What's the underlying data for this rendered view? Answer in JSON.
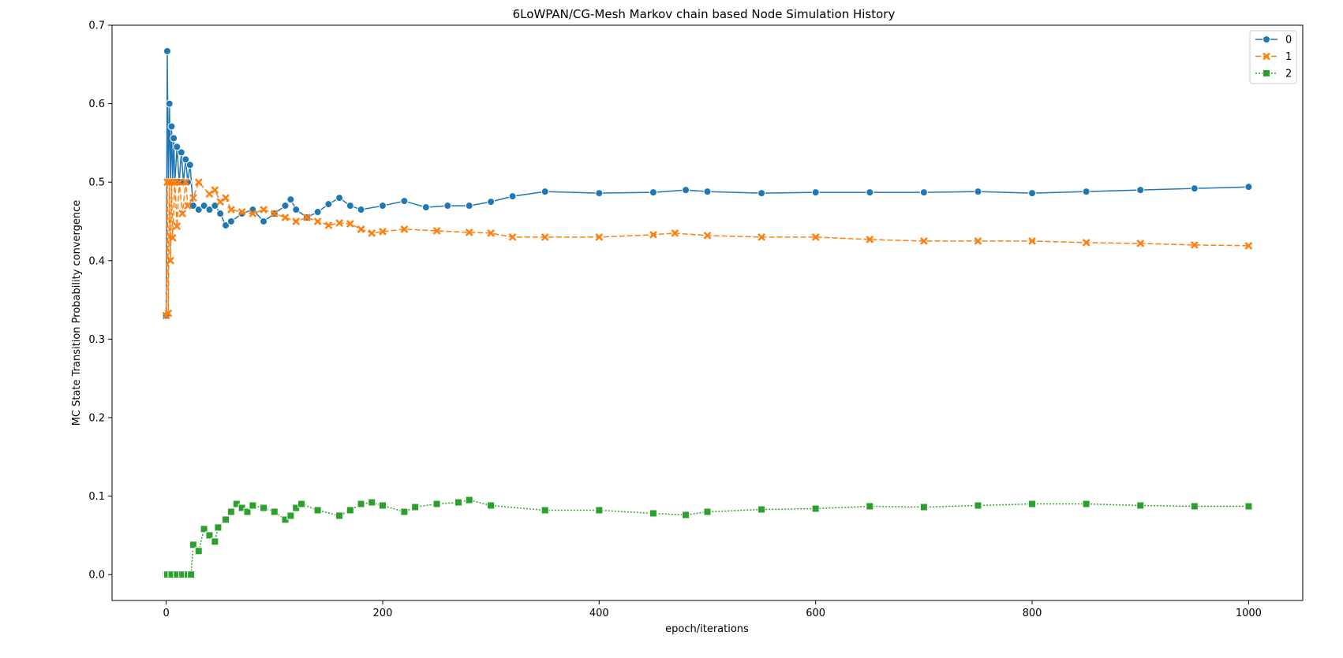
{
  "chart_data": {
    "type": "line",
    "title": "6LoWPAN/CG-Mesh Markov chain based Node Simulation History",
    "xlabel": "epoch/iterations",
    "ylabel": "MC State Transition Probability convergence",
    "xlim": [
      -50,
      1050
    ],
    "ylim": [
      -0.033,
      0.7
    ],
    "xticks": [
      0,
      200,
      400,
      600,
      800,
      1000
    ],
    "yticks": [
      0.0,
      0.1,
      0.2,
      0.3,
      0.4,
      0.5,
      0.6,
      0.7
    ],
    "xtick_labels": [
      "0",
      "200",
      "400",
      "600",
      "800",
      "1000"
    ],
    "ytick_labels": [
      "0.0",
      "0.1",
      "0.2",
      "0.3",
      "0.4",
      "0.5",
      "0.6",
      "0.7"
    ],
    "grid": false,
    "legend_position": "top-right",
    "series": [
      {
        "name": "0",
        "color": "#1f77b4",
        "marker": "circle",
        "line_style": "solid",
        "points": [
          [
            0,
            0.33
          ],
          [
            1,
            0.667
          ],
          [
            2,
            0.5
          ],
          [
            3,
            0.6
          ],
          [
            4,
            0.5
          ],
          [
            5,
            0.571
          ],
          [
            6,
            0.5
          ],
          [
            7,
            0.556
          ],
          [
            8,
            0.5
          ],
          [
            10,
            0.545
          ],
          [
            12,
            0.5
          ],
          [
            14,
            0.538
          ],
          [
            16,
            0.5
          ],
          [
            18,
            0.529
          ],
          [
            20,
            0.5
          ],
          [
            22,
            0.522
          ],
          [
            25,
            0.47
          ],
          [
            30,
            0.465
          ],
          [
            35,
            0.47
          ],
          [
            40,
            0.465
          ],
          [
            45,
            0.47
          ],
          [
            50,
            0.46
          ],
          [
            55,
            0.445
          ],
          [
            60,
            0.45
          ],
          [
            70,
            0.46
          ],
          [
            80,
            0.465
          ],
          [
            90,
            0.45
          ],
          [
            100,
            0.46
          ],
          [
            110,
            0.47
          ],
          [
            115,
            0.478
          ],
          [
            120,
            0.465
          ],
          [
            130,
            0.455
          ],
          [
            140,
            0.462
          ],
          [
            150,
            0.472
          ],
          [
            160,
            0.48
          ],
          [
            170,
            0.47
          ],
          [
            180,
            0.465
          ],
          [
            200,
            0.47
          ],
          [
            220,
            0.476
          ],
          [
            240,
            0.468
          ],
          [
            260,
            0.47
          ],
          [
            280,
            0.47
          ],
          [
            300,
            0.475
          ],
          [
            320,
            0.482
          ],
          [
            350,
            0.488
          ],
          [
            400,
            0.486
          ],
          [
            450,
            0.487
          ],
          [
            480,
            0.49
          ],
          [
            500,
            0.488
          ],
          [
            550,
            0.486
          ],
          [
            600,
            0.487
          ],
          [
            650,
            0.487
          ],
          [
            700,
            0.487
          ],
          [
            750,
            0.488
          ],
          [
            800,
            0.486
          ],
          [
            850,
            0.488
          ],
          [
            900,
            0.49
          ],
          [
            950,
            0.492
          ],
          [
            1000,
            0.494
          ]
        ]
      },
      {
        "name": "1",
        "color": "#ff7f0e",
        "marker": "x",
        "line_style": "dashed",
        "points": [
          [
            0,
            0.33
          ],
          [
            1,
            0.5
          ],
          [
            2,
            0.333
          ],
          [
            3,
            0.5
          ],
          [
            4,
            0.4
          ],
          [
            5,
            0.5
          ],
          [
            6,
            0.429
          ],
          [
            8,
            0.5
          ],
          [
            10,
            0.444
          ],
          [
            12,
            0.5
          ],
          [
            15,
            0.46
          ],
          [
            18,
            0.5
          ],
          [
            20,
            0.47
          ],
          [
            25,
            0.48
          ],
          [
            30,
            0.5
          ],
          [
            40,
            0.485
          ],
          [
            45,
            0.49
          ],
          [
            50,
            0.475
          ],
          [
            55,
            0.48
          ],
          [
            60,
            0.465
          ],
          [
            70,
            0.462
          ],
          [
            80,
            0.46
          ],
          [
            90,
            0.465
          ],
          [
            100,
            0.46
          ],
          [
            110,
            0.455
          ],
          [
            120,
            0.45
          ],
          [
            130,
            0.455
          ],
          [
            140,
            0.45
          ],
          [
            150,
            0.445
          ],
          [
            160,
            0.448
          ],
          [
            170,
            0.447
          ],
          [
            180,
            0.44
          ],
          [
            190,
            0.435
          ],
          [
            200,
            0.437
          ],
          [
            220,
            0.44
          ],
          [
            250,
            0.438
          ],
          [
            280,
            0.436
          ],
          [
            300,
            0.435
          ],
          [
            320,
            0.43
          ],
          [
            350,
            0.43
          ],
          [
            400,
            0.43
          ],
          [
            450,
            0.433
          ],
          [
            470,
            0.435
          ],
          [
            500,
            0.432
          ],
          [
            550,
            0.43
          ],
          [
            600,
            0.43
          ],
          [
            650,
            0.427
          ],
          [
            700,
            0.425
          ],
          [
            750,
            0.425
          ],
          [
            800,
            0.425
          ],
          [
            850,
            0.423
          ],
          [
            900,
            0.422
          ],
          [
            950,
            0.42
          ],
          [
            1000,
            0.419
          ]
        ]
      },
      {
        "name": "2",
        "color": "#2ca02c",
        "marker": "square",
        "line_style": "dotted",
        "points": [
          [
            0,
            0.0
          ],
          [
            1,
            0.0
          ],
          [
            5,
            0.0
          ],
          [
            10,
            0.0
          ],
          [
            15,
            0.0
          ],
          [
            20,
            0.0
          ],
          [
            23,
            0.0
          ],
          [
            25,
            0.038
          ],
          [
            30,
            0.03
          ],
          [
            35,
            0.058
          ],
          [
            40,
            0.05
          ],
          [
            45,
            0.042
          ],
          [
            48,
            0.06
          ],
          [
            55,
            0.07
          ],
          [
            60,
            0.08
          ],
          [
            65,
            0.09
          ],
          [
            70,
            0.085
          ],
          [
            75,
            0.08
          ],
          [
            80,
            0.088
          ],
          [
            90,
            0.085
          ],
          [
            100,
            0.08
          ],
          [
            110,
            0.07
          ],
          [
            115,
            0.075
          ],
          [
            120,
            0.085
          ],
          [
            125,
            0.09
          ],
          [
            140,
            0.082
          ],
          [
            160,
            0.075
          ],
          [
            170,
            0.082
          ],
          [
            180,
            0.09
          ],
          [
            190,
            0.092
          ],
          [
            200,
            0.088
          ],
          [
            220,
            0.08
          ],
          [
            230,
            0.086
          ],
          [
            250,
            0.09
          ],
          [
            270,
            0.092
          ],
          [
            280,
            0.095
          ],
          [
            300,
            0.088
          ],
          [
            350,
            0.082
          ],
          [
            400,
            0.082
          ],
          [
            450,
            0.078
          ],
          [
            480,
            0.076
          ],
          [
            500,
            0.08
          ],
          [
            550,
            0.083
          ],
          [
            600,
            0.084
          ],
          [
            650,
            0.087
          ],
          [
            700,
            0.086
          ],
          [
            750,
            0.088
          ],
          [
            800,
            0.09
          ],
          [
            850,
            0.09
          ],
          [
            900,
            0.088
          ],
          [
            950,
            0.087
          ],
          [
            1000,
            0.087
          ]
        ]
      }
    ]
  }
}
